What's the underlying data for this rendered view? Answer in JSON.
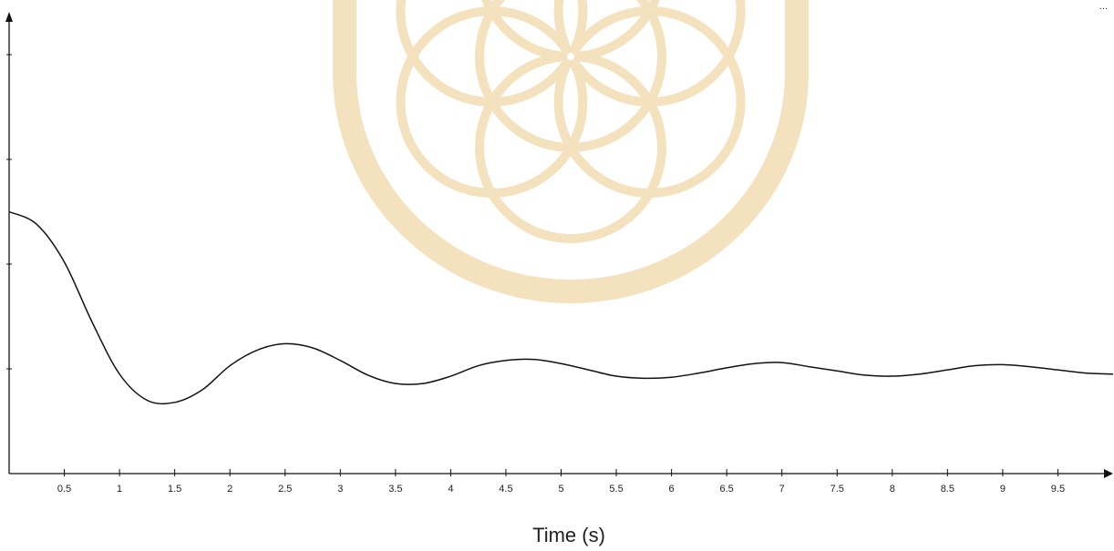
{
  "header": {
    "text": "..."
  },
  "colors": {
    "line": "#111111",
    "axis": "#111111",
    "watermark": "#f3e2bd"
  },
  "watermark": {
    "icon": "seed-of-life-logo-watermark"
  },
  "chart_data": {
    "type": "line",
    "title": "",
    "xlabel": "Time (s)",
    "ylabel": "",
    "xlim": [
      0,
      10
    ],
    "ylim": [
      0,
      4.4
    ],
    "y_ticks": [
      1,
      2,
      3,
      4
    ],
    "x_tick_labels": [
      "0.5",
      "1",
      "1.5",
      "2",
      "2.5",
      "3",
      "3.5",
      "4",
      "4.5",
      "5",
      "5.5",
      "6",
      "6.5",
      "7",
      "7.5",
      "8",
      "8.5",
      "9",
      "9.5"
    ],
    "grid": false,
    "legend": "none",
    "series": [
      {
        "x": [
          0,
          0.25,
          0.5,
          0.75,
          1.0,
          1.25,
          1.5,
          1.75,
          2.0,
          2.25,
          2.5,
          2.75,
          3.0,
          3.25,
          3.5,
          3.75,
          4.0,
          4.25,
          4.5,
          4.75,
          5.0,
          5.25,
          5.5,
          5.75,
          6.0,
          6.25,
          6.5,
          6.75,
          7.0,
          7.25,
          7.5,
          7.75,
          8.0,
          8.25,
          8.5,
          8.75,
          9.0,
          9.25,
          9.5,
          9.75,
          10.0
        ],
        "values": [
          2.5,
          2.38,
          2.02,
          1.45,
          0.95,
          0.7,
          0.68,
          0.8,
          1.03,
          1.18,
          1.24,
          1.2,
          1.08,
          0.94,
          0.86,
          0.86,
          0.93,
          1.03,
          1.08,
          1.09,
          1.05,
          0.99,
          0.93,
          0.91,
          0.92,
          0.96,
          1.01,
          1.05,
          1.06,
          1.02,
          0.98,
          0.94,
          0.93,
          0.95,
          0.99,
          1.03,
          1.04,
          1.02,
          0.99,
          0.96,
          0.95
        ]
      }
    ]
  }
}
